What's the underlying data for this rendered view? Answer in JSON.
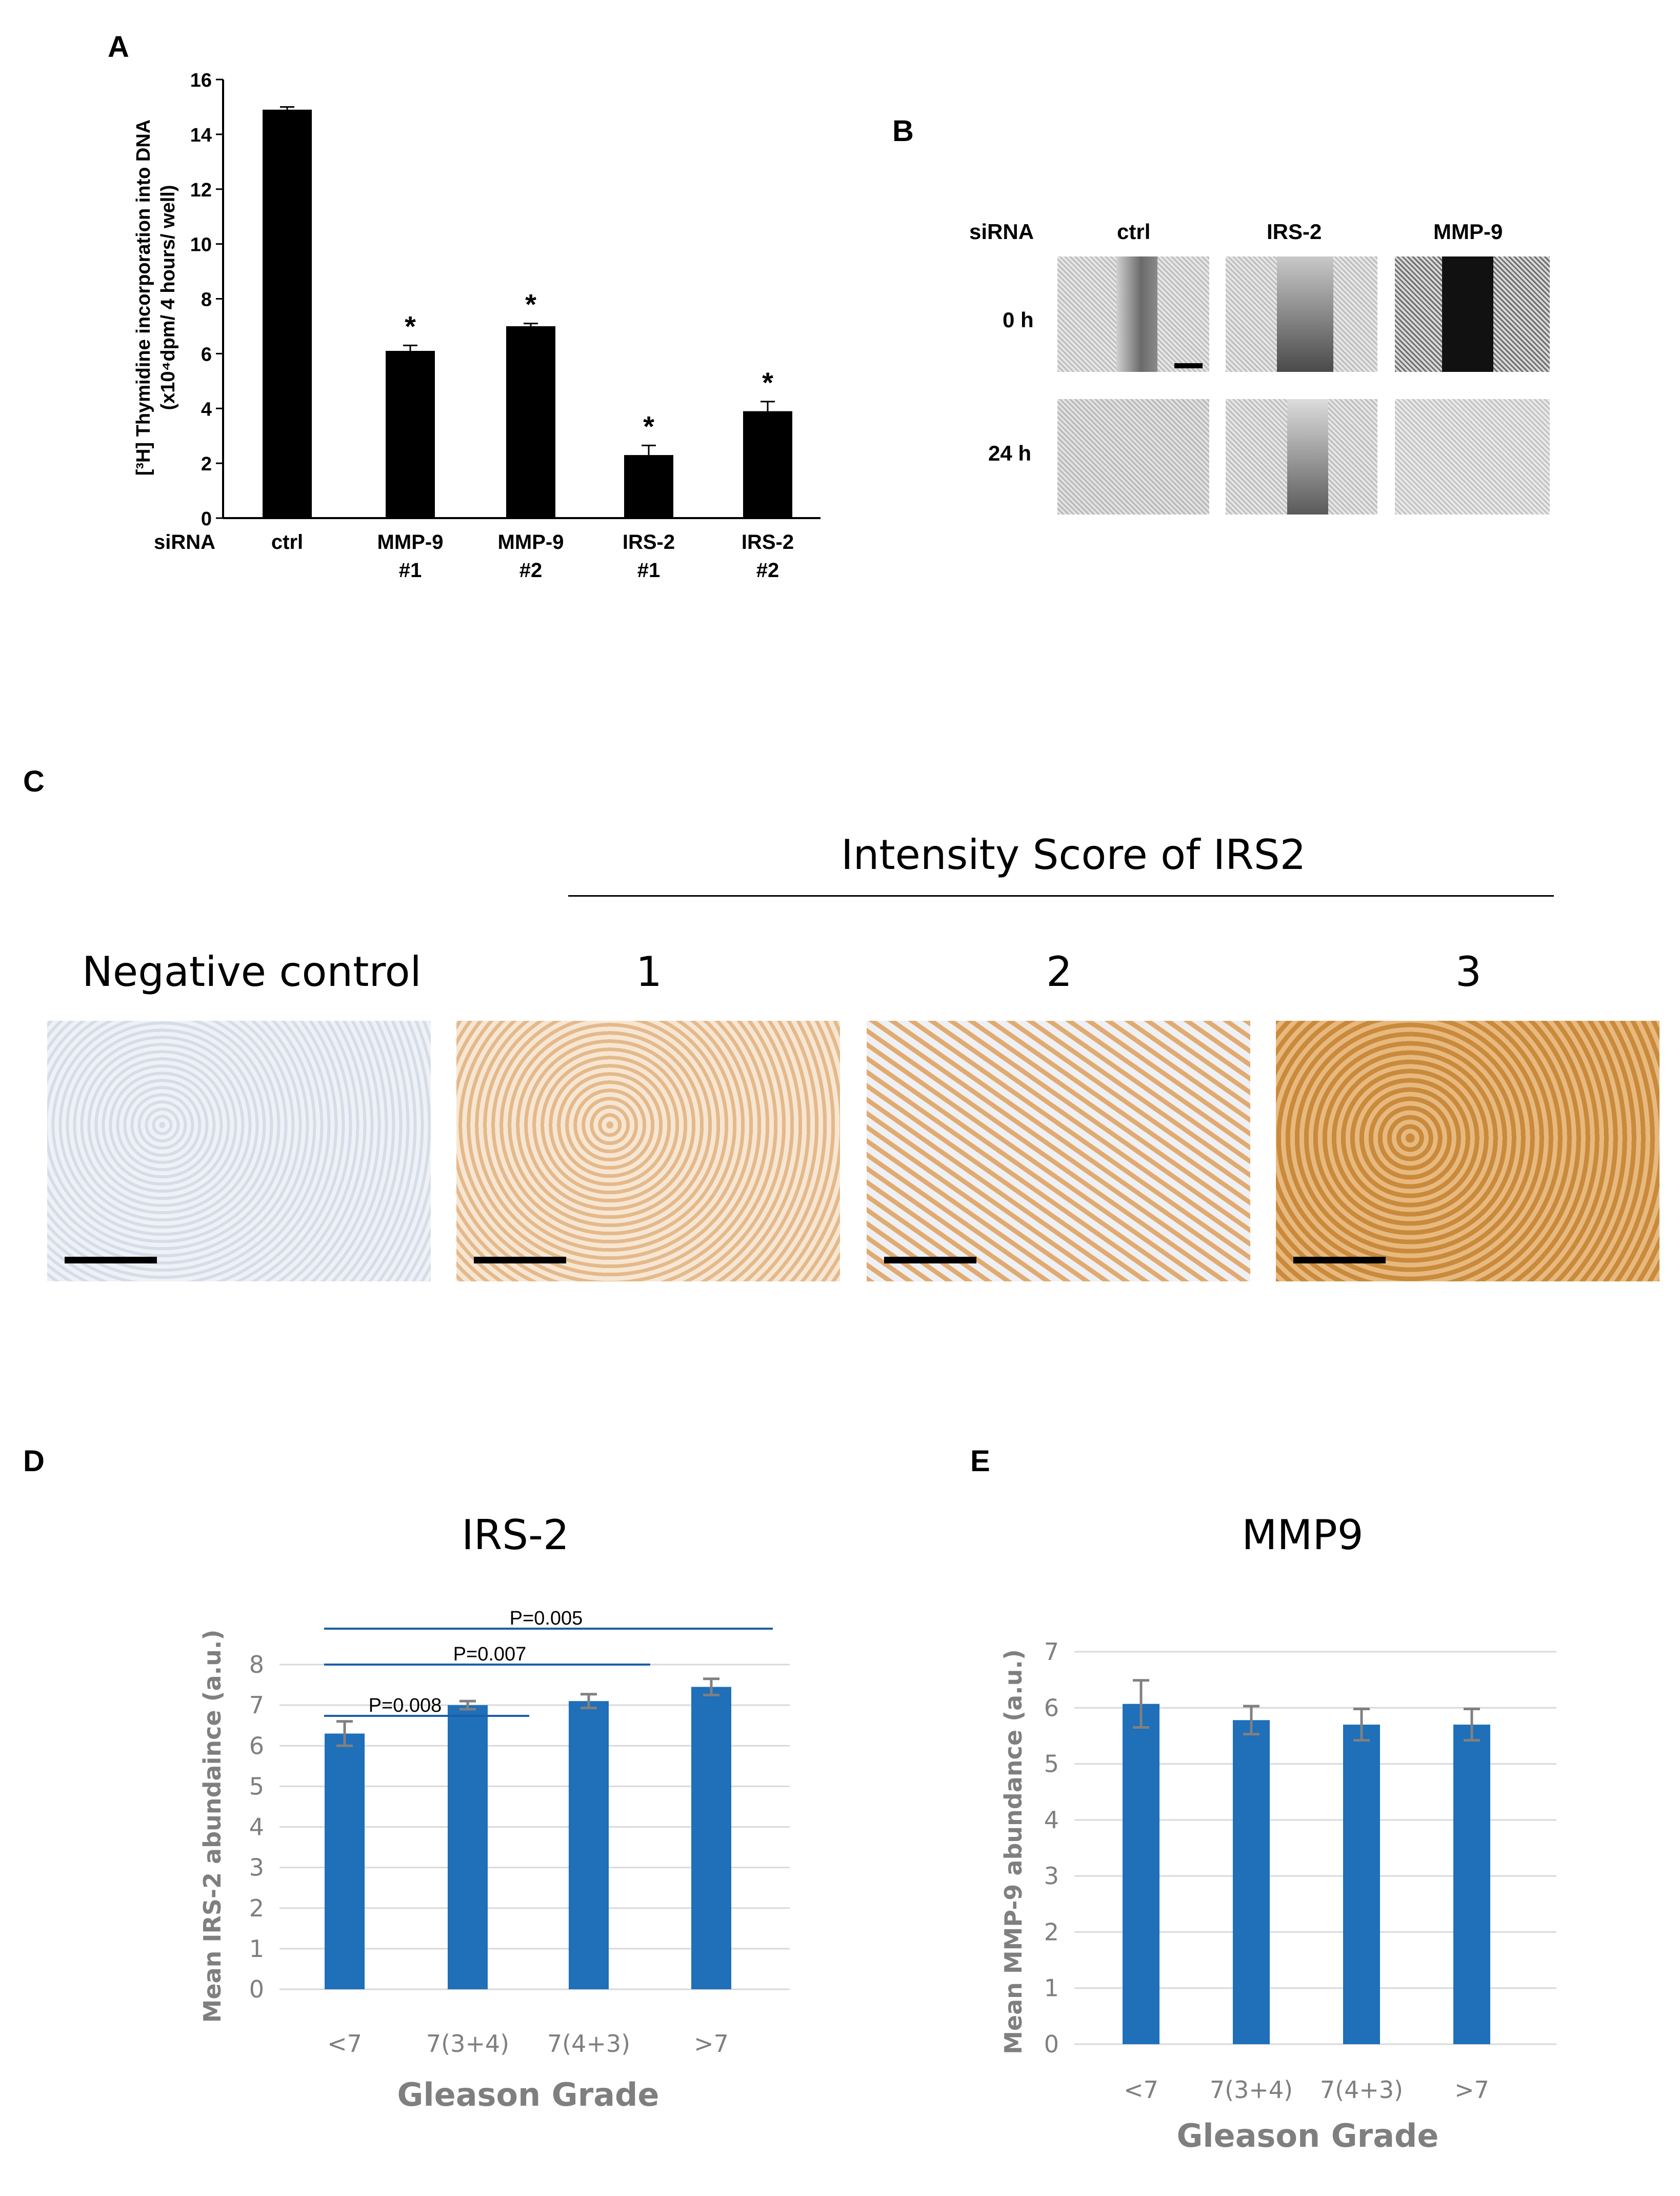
{
  "panels": {
    "a": "A",
    "b": "B",
    "c": "C",
    "d": "D",
    "e": "E"
  },
  "colors": {
    "bar_black": "#000000",
    "bar_blue": "#1f6fb9",
    "error_gray": "#808080",
    "grid": "#d9d9d9",
    "axis_text_gray": "#7f7f7f",
    "sig_line": "#1a5fa6",
    "pointer_line_green": "#8bc34a"
  },
  "chart_data": [
    {
      "id": "A",
      "type": "bar",
      "row_label": "siRNA",
      "ylabel_line1": "[³H] Thymidine incorporation into DNA",
      "ylabel_line2": "(x10⁴dpm/ 4 hours/ well)",
      "ylim": [
        0,
        16
      ],
      "yticks": [
        0,
        2,
        4,
        6,
        8,
        10,
        12,
        14,
        16
      ],
      "categories": [
        {
          "line1": "ctrl",
          "line2": ""
        },
        {
          "line1": "MMP-9",
          "line2": "#1"
        },
        {
          "line1": "MMP-9",
          "line2": "#2"
        },
        {
          "line1": "IRS-2",
          "line2": "#1"
        },
        {
          "line1": "IRS-2",
          "line2": "#2"
        }
      ],
      "values": [
        14.9,
        6.1,
        7.0,
        2.3,
        3.9
      ],
      "errors": [
        0.1,
        0.2,
        0.1,
        0.35,
        0.35
      ],
      "annotations": [
        "",
        "*",
        "*",
        "*",
        "*"
      ]
    },
    {
      "id": "D",
      "type": "bar",
      "title": "IRS-2",
      "xlabel": "Gleason Grade",
      "ylabel": "Mean IRS-2 abundaince (a.u.)",
      "ylim": [
        0,
        8
      ],
      "yticks": [
        0,
        1,
        2,
        3,
        4,
        5,
        6,
        7,
        8
      ],
      "categories": [
        "<7",
        "7(3+4)",
        "7(4+3)",
        ">7"
      ],
      "values": [
        6.3,
        7.0,
        7.1,
        7.45
      ],
      "errors": [
        0.3,
        0.1,
        0.17,
        0.2
      ],
      "grid": true,
      "significance": [
        {
          "label": "P=0.008",
          "from": 0,
          "to": 1
        },
        {
          "label": "P=0.007",
          "from": 0,
          "to": 2
        },
        {
          "label": "P=0.005",
          "from": 0,
          "to": 3
        }
      ]
    },
    {
      "id": "E",
      "type": "bar",
      "title": "MMP9",
      "xlabel": "Gleason Grade",
      "ylabel": "Mean MMP-9 abundance (a.u.)",
      "ylim": [
        0,
        7
      ],
      "yticks": [
        0,
        1,
        2,
        3,
        4,
        5,
        6,
        7
      ],
      "categories": [
        "<7",
        "7(3+4)",
        "7(4+3)",
        ">7"
      ],
      "values": [
        6.07,
        5.78,
        5.7,
        5.7
      ],
      "errors": [
        0.42,
        0.25,
        0.28,
        0.28
      ],
      "grid": true
    }
  ],
  "panel_b": {
    "row_label": "siRNA",
    "columns": [
      "ctrl",
      "IRS-2",
      "MMP-9"
    ],
    "rows": [
      "0 h",
      "24 h"
    ]
  },
  "panel_c": {
    "header": "Intensity Score of IRS2",
    "labels": [
      "Negative control",
      "1",
      "2",
      "3"
    ]
  }
}
